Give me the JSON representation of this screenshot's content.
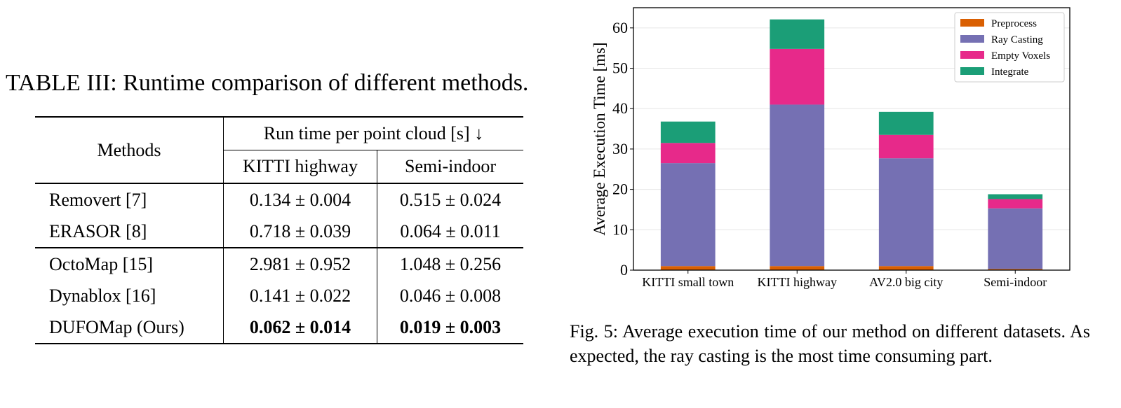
{
  "table": {
    "caption": "TABLE III: Runtime comparison of different methods.",
    "col_methods": "Methods",
    "col_group": "Run time per point cloud [s] ↓",
    "col_kitti": "KITTI highway",
    "col_semi": "Semi-indoor",
    "rows": [
      {
        "method": "Removert [7]",
        "kitti": "0.134 ± 0.004",
        "semi": "0.515 ± 0.024"
      },
      {
        "method": "ERASOR [8]",
        "kitti": "0.718 ± 0.039",
        "semi": "0.064 ± 0.011"
      },
      {
        "method": "OctoMap [15]",
        "kitti": "2.981 ± 0.952",
        "semi": "1.048 ± 0.256"
      },
      {
        "method": "Dynablox [16]",
        "kitti": "0.141 ± 0.022",
        "semi": "0.046 ± 0.008"
      },
      {
        "method": "DUFOMap (Ours)",
        "kitti": "0.062 ± 0.014",
        "semi": "0.019 ± 0.003"
      }
    ]
  },
  "chart_data": {
    "type": "bar",
    "stacked": true,
    "ylabel": "Average Execution Time [ms]",
    "xlabel": "",
    "ylim": [
      0,
      65
    ],
    "yticks": [
      0,
      10,
      20,
      30,
      40,
      50,
      60
    ],
    "grid": true,
    "legend_position": "top-right",
    "categories": [
      "KITTI small town",
      "KITTI highway",
      "AV2.0 big city",
      "Semi-indoor"
    ],
    "series": [
      {
        "name": "Preprocess",
        "color": "#d95f02",
        "values": [
          1.0,
          1.0,
          1.0,
          0.3
        ]
      },
      {
        "name": "Ray Casting",
        "color": "#7570b3",
        "values": [
          25.5,
          40.0,
          26.7,
          15.0
        ]
      },
      {
        "name": "Empty Voxels",
        "color": "#e7298a",
        "values": [
          5.0,
          13.8,
          5.8,
          2.3
        ]
      },
      {
        "name": "Integrate",
        "color": "#1b9e77",
        "values": [
          5.3,
          7.3,
          5.7,
          1.2
        ]
      }
    ]
  },
  "figure": {
    "caption": "Fig. 5: Average execution time of our method on different datasets. As expected, the ray casting is the most time consuming part."
  }
}
